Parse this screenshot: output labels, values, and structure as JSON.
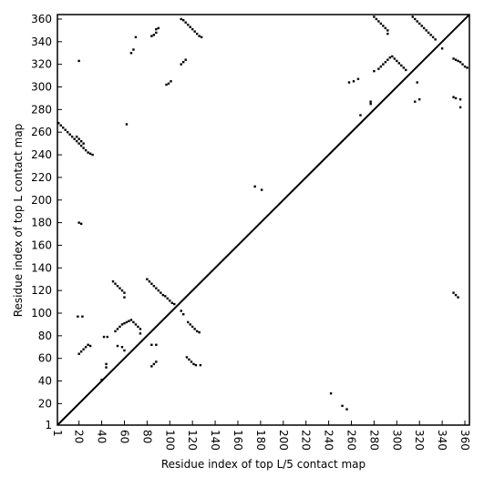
{
  "chart_data": {
    "type": "scatter",
    "xlabel": "Residue index of top L/5 contact map",
    "ylabel": "Residue index of top L contact map",
    "xlim": [
      1,
      364
    ],
    "ylim": [
      1,
      364
    ],
    "xticks": [
      1,
      20,
      40,
      60,
      80,
      100,
      120,
      140,
      160,
      180,
      200,
      220,
      240,
      260,
      280,
      300,
      320,
      340,
      360
    ],
    "yticks": [
      1,
      20,
      40,
      60,
      80,
      100,
      120,
      140,
      160,
      180,
      200,
      220,
      240,
      260,
      280,
      300,
      320,
      340,
      360
    ],
    "diagonal": true,
    "color": "#000000",
    "x": [
      2,
      4,
      6,
      8,
      10,
      12,
      14,
      16,
      18,
      20,
      22,
      24,
      26,
      28,
      30,
      32,
      18,
      20,
      22,
      24,
      20,
      62,
      20,
      22,
      66,
      68,
      70,
      84,
      86,
      88,
      88,
      90,
      97,
      99,
      101,
      110,
      112,
      114,
      110,
      112,
      114,
      116,
      118,
      120,
      122,
      124,
      126,
      128,
      175,
      181,
      258,
      262,
      266,
      268,
      277,
      277,
      280,
      282,
      284,
      286,
      288,
      290,
      292,
      292,
      280,
      284,
      286,
      288,
      290,
      292,
      294,
      296,
      298,
      300,
      302,
      304,
      306,
      308,
      314,
      316,
      318,
      320,
      322,
      324,
      326,
      328,
      330,
      332,
      334,
      318,
      316,
      320,
      340,
      350,
      352,
      354,
      356,
      358,
      360,
      362,
      350,
      352,
      356,
      356,
      19,
      23,
      20,
      22,
      24,
      26,
      28,
      30,
      40,
      42,
      45,
      44,
      44,
      50,
      52,
      54,
      56,
      58,
      60,
      60,
      52,
      54,
      56,
      58,
      60,
      62,
      64,
      66,
      68,
      70,
      72,
      74,
      74,
      54,
      58,
      60,
      80,
      82,
      84,
      86,
      88,
      90,
      92,
      94,
      96,
      98,
      100,
      102,
      104,
      84,
      88,
      84,
      86,
      88,
      110,
      112,
      116,
      118,
      120,
      122,
      124,
      126,
      115,
      117,
      119,
      121,
      123,
      127,
      242,
      252,
      256,
      350,
      352,
      354
    ],
    "values": [
      268,
      266,
      264,
      262,
      260,
      258,
      256,
      254,
      252,
      250,
      248,
      246,
      244,
      242,
      241,
      240,
      256,
      254,
      252,
      250,
      323,
      267,
      180,
      179,
      330,
      333,
      344,
      345,
      346,
      348,
      351,
      352,
      302,
      303,
      305,
      320,
      322,
      324,
      360,
      359,
      357,
      355,
      353,
      351,
      349,
      347,
      345,
      344,
      212,
      209,
      304,
      305,
      307,
      275,
      285,
      287,
      362,
      360,
      358,
      356,
      354,
      352,
      350,
      347,
      314,
      316,
      318,
      320,
      322,
      324,
      326,
      327,
      325,
      323,
      321,
      319,
      317,
      315,
      362,
      360,
      358,
      356,
      354,
      352,
      350,
      348,
      346,
      344,
      342,
      304,
      287,
      289,
      334,
      325,
      324,
      323,
      322,
      320,
      318,
      317,
      291,
      290,
      289,
      282,
      97,
      97,
      64,
      66,
      68,
      70,
      72,
      71,
      41,
      79,
      79,
      55,
      52,
      128,
      126,
      124,
      122,
      120,
      118,
      114,
      84,
      86,
      88,
      90,
      91,
      92,
      93,
      94,
      92,
      90,
      88,
      86,
      82,
      71,
      70,
      67,
      130,
      128,
      126,
      124,
      122,
      120,
      118,
      116,
      115,
      113,
      111,
      109,
      108,
      72,
      72,
      53,
      55,
      57,
      102,
      99,
      92,
      90,
      88,
      86,
      84,
      83,
      61,
      59,
      57,
      55,
      54,
      54,
      29,
      18,
      15,
      118,
      116,
      114
    ]
  }
}
